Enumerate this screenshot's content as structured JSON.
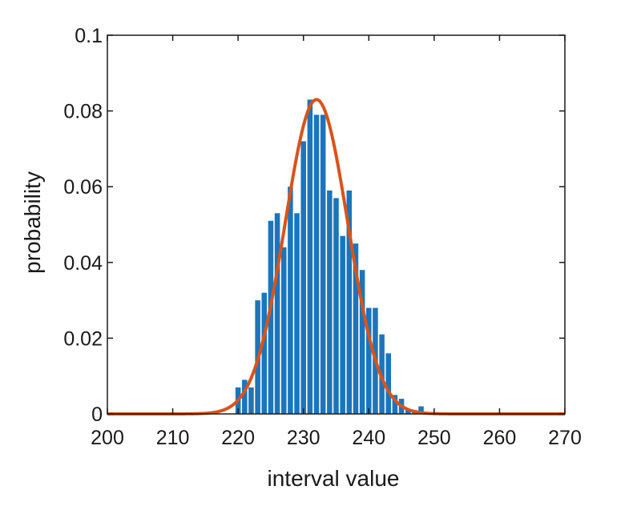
{
  "chart_data": {
    "type": "bar",
    "xlabel": "interval value",
    "ylabel": "probability",
    "xlim": [
      200,
      270
    ],
    "ylim": [
      0,
      0.1
    ],
    "x_ticks": [
      "200",
      "210",
      "220",
      "230",
      "240",
      "250",
      "260",
      "270"
    ],
    "y_ticks": [
      "0",
      "0.02",
      "0.04",
      "0.06",
      "0.08",
      "0.1"
    ],
    "grid": false,
    "colors": {
      "bars": "#1b75bc",
      "fit": "#d95319",
      "axes": "#1a1a1a"
    },
    "series": [
      {
        "type": "bar",
        "bin_width": 1,
        "x": [
          220,
          221,
          222,
          223,
          224,
          225,
          226,
          227,
          228,
          229,
          230,
          231,
          232,
          233,
          234,
          235,
          236,
          237,
          238,
          239,
          240,
          241,
          242,
          243,
          244,
          245,
          246,
          247,
          248
        ],
        "values": [
          0.007,
          0.009,
          0.007,
          0.03,
          0.032,
          0.051,
          0.053,
          0.044,
          0.06,
          0.053,
          0.072,
          0.083,
          0.079,
          0.079,
          0.059,
          0.057,
          0.047,
          0.059,
          0.045,
          0.038,
          0.028,
          0.028,
          0.021,
          0.016,
          0.005,
          0.004,
          0.001,
          0.001,
          0.002
        ]
      },
      {
        "type": "line",
        "mean": 232.0,
        "std": 4.8,
        "peak": 0.083
      }
    ]
  }
}
